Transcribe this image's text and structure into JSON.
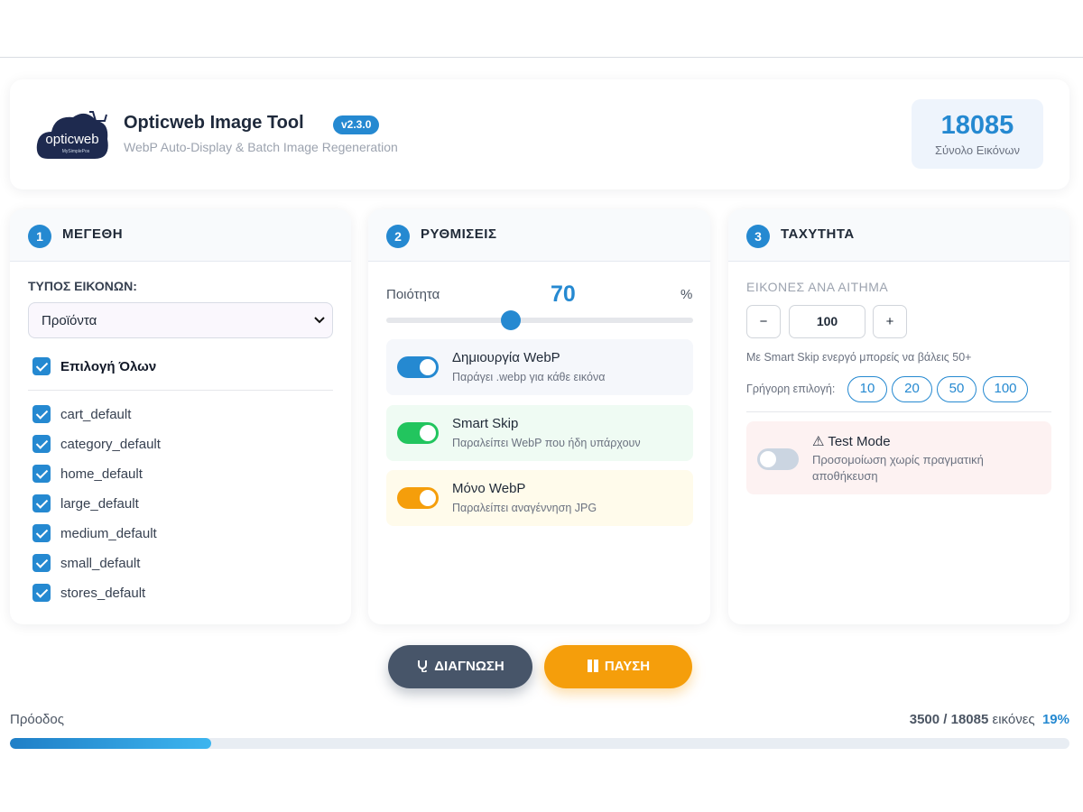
{
  "header": {
    "logo_text": "opticweb",
    "logo_subtext": "MySimplePos",
    "title": "Opticweb Image Tool",
    "version": "v2.3.0",
    "subtitle": "WebP Auto-Display & Batch Image Regeneration",
    "total_value": 18085,
    "total_label": "Σύνολο Εικόνων"
  },
  "panels": [
    {
      "number": "1",
      "title": "ΜΕΓΕΘΗ",
      "image_type_label": "ΤΥΠΟΣ ΕΙΚΟΝΩΝ:",
      "image_type_selected": "Προϊόντα",
      "select_all": "Επιλογή Όλων",
      "sizes": [
        "cart_default",
        "category_default",
        "home_default",
        "large_default",
        "medium_default",
        "small_default",
        "stores_default"
      ]
    },
    {
      "number": "2",
      "title": "ΡΥΘΜΙΣΕΙΣ",
      "quality_label": "Ποιότητα",
      "quality_value": 70,
      "quality_unit": "%",
      "toggles": [
        {
          "title": "Δημιουργία WebP",
          "description": "Παράγει .webp για κάθε εικόνα"
        },
        {
          "title": "Smart Skip",
          "description": "Παραλείπει WebP που ήδη υπάρχουν"
        },
        {
          "title": "Μόνο WebP",
          "description": "Παραλείπει αναγέννηση JPG"
        }
      ]
    },
    {
      "number": "3",
      "title": "ΤΑΧΥΤΗΤΑ",
      "per_request_label": "ΕΙΚΟΝΕΣ ΑΝΑ ΑΙΤΗΜΑ",
      "decrement": "−",
      "per_request_value": 100,
      "increment": "+",
      "hint": "Με Smart Skip ενεργό μπορείς να βάλεις 50+",
      "quick_label": "Γρήγορη επιλογή:",
      "quick_options": [
        10,
        20,
        50,
        100
      ],
      "test_mode": {
        "title": "⚠ Test Mode",
        "description": "Προσομοίωση χωρίς πραγματική αποθήκευση"
      }
    }
  ],
  "actions": {
    "diagnose": "ΔΙΑΓΝΩΣΗ",
    "pause": "ΠΑΥΣΗ"
  },
  "progress": {
    "label": "Πρόοδος",
    "done": 3500,
    "separator": "/",
    "total": 18085,
    "unit": "εικόνες",
    "percent": {
      "value": 19,
      "label": "19%"
    }
  }
}
